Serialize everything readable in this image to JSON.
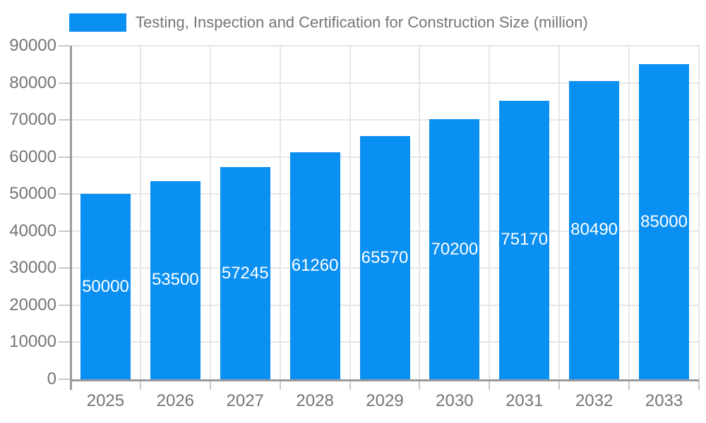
{
  "chart_data": {
    "type": "bar",
    "title": "Testing, Inspection and Certification for Construction Size (million)",
    "categories": [
      "2025",
      "2026",
      "2027",
      "2028",
      "2029",
      "2030",
      "2031",
      "2032",
      "2033"
    ],
    "series": [
      {
        "name": "Testing, Inspection and Certification for Construction Size (million)",
        "values": [
          50000,
          53500,
          57245,
          61260,
          65570,
          70200,
          75170,
          80490,
          85000
        ]
      }
    ],
    "xlabel": "",
    "ylabel": "",
    "ylim": [
      0,
      90000
    ],
    "ytick_step": 10000,
    "grid": true,
    "legend_position": "top-left",
    "bar_label_position": "center",
    "colors": {
      "bar": "#0a8ff2",
      "bar_label": "#ffffff",
      "axis_text": "#757575",
      "axis_line": "#9a9a9a",
      "gridline": "#e6e6e6",
      "tick": "#c8c8c8",
      "background": "#ffffff"
    }
  }
}
